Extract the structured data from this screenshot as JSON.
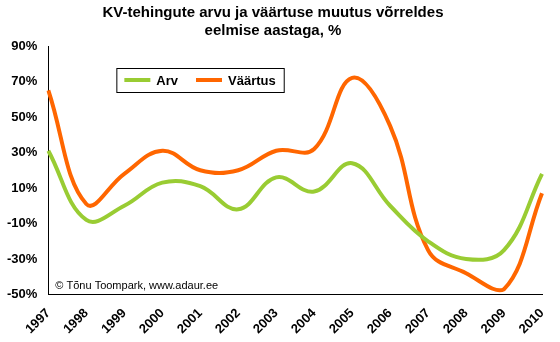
{
  "chart_data": {
    "type": "line",
    "title": [
      "KV-tehingute arvu ja väärtuse muutus võrreldes",
      "eelmise aastaga, %"
    ],
    "annotations": [
      "© Tõnu Toompark, www.adaur.ee"
    ],
    "categories": [
      "1997",
      "1998",
      "1999",
      "2000",
      "2001",
      "2002",
      "2003",
      "2004",
      "2005",
      "2006",
      "2007",
      "2008",
      "2009",
      "2010"
    ],
    "series": [
      {
        "name": "Arv",
        "color": "#99cc33",
        "values": [
          31,
          -8,
          0,
          13,
          11,
          -2,
          16,
          8,
          24,
          0,
          -20,
          -30,
          -25,
          18
        ]
      },
      {
        "name": "Väärtus",
        "color": "#ff6600",
        "values": [
          65,
          1,
          18,
          31,
          20,
          20,
          31,
          32,
          72,
          45,
          -25,
          -38,
          -47,
          7
        ]
      }
    ],
    "ylim": [
      -50,
      90
    ],
    "yticks": [
      {
        "value": -50,
        "label": "-50%"
      },
      {
        "value": -30,
        "label": "-30%"
      },
      {
        "value": -10,
        "label": "-10%"
      },
      {
        "value": 10,
        "label": "10%"
      },
      {
        "value": 30,
        "label": "30%"
      },
      {
        "value": 50,
        "label": "50%"
      },
      {
        "value": 70,
        "label": "70%"
      },
      {
        "value": 90,
        "label": "90%"
      }
    ],
    "grid": false,
    "legend": "upper left",
    "line_style": "smooth"
  }
}
